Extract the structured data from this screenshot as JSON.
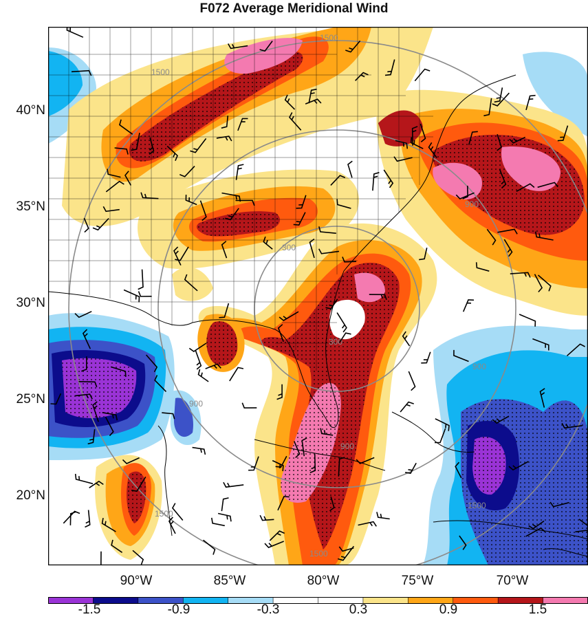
{
  "title": "F072 Average Meridional Wind",
  "latitude_labels": [
    "40°N",
    "35°N",
    "30°N",
    "25°N",
    "20°N"
  ],
  "longitude_labels": [
    "90°W",
    "85°W",
    "80°W",
    "75°W",
    "70°W"
  ],
  "colorbar": {
    "labels": [
      "-1.5",
      "-0.9",
      "-0.3",
      "0.3",
      "0.9",
      "1.5"
    ],
    "colors": [
      "#9a33d6",
      "#0c0c8c",
      "#3c52c8",
      "#12b4f2",
      "#a6dcf6",
      "#ffffff",
      "#ffffff",
      "#fbe48a",
      "#ffa617",
      "#ff5a0e",
      "#b5161a",
      "#f47ab0"
    ]
  },
  "contour_labels": [
    "1500",
    "1500",
    "1500",
    "1500",
    "1500",
    "900",
    "900",
    "900",
    "900",
    "300",
    "300"
  ],
  "chart_data": {
    "type": "heatmap",
    "title": "F072 Average Meridional Wind",
    "x_ticks": [
      "90°W",
      "85°W",
      "80°W",
      "75°W",
      "70°W"
    ],
    "y_ticks": [
      "40°N",
      "35°N",
      "30°N",
      "25°N",
      "20°N"
    ],
    "colorbar_ticks": [
      -1.5,
      -0.9,
      -0.3,
      0.3,
      0.9,
      1.5
    ],
    "range_circles_km": [
      300,
      900,
      1500
    ]
  }
}
